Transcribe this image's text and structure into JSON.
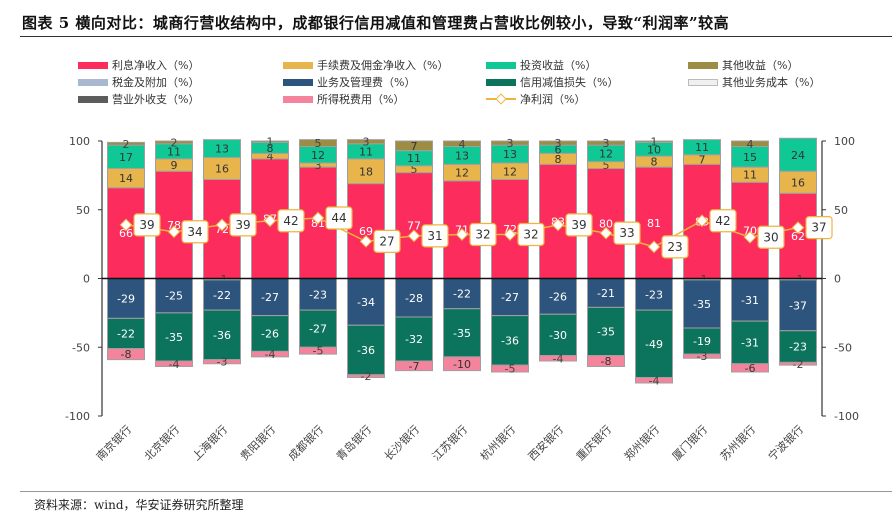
{
  "title": "图表 5 横向对比：城商行营收结构中，成都银行信用减值和管理费占营收比例较小，导致“利润率”较高",
  "source": "资料来源：wind，华安证券研究所整理",
  "colors": {
    "net_interest": "#fc2c5c",
    "fee": "#e8b54c",
    "investment": "#10c895",
    "other_income": "#9c8c44",
    "tax_surcharge": "#a8b8d0",
    "opex": "#2c547c",
    "credit_impairment": "#0c745c",
    "other_cost": "#f0f0f0",
    "non_operating": "#5c5c5c",
    "income_tax": "#f4849c",
    "net_profit": "#f0b43c"
  },
  "chart_data": {
    "type": "bar",
    "stacked": true,
    "title": "",
    "xlabel": "",
    "ylabel": "",
    "ylim": [
      -100,
      100
    ],
    "yticks": [
      -100,
      -50,
      0,
      50,
      100
    ],
    "secondary_ylim": [
      -100,
      100
    ],
    "grid": false,
    "legend_position": "top",
    "categories": [
      "南京银行",
      "北京银行",
      "上海银行",
      "贵阳银行",
      "成都银行",
      "青岛银行",
      "长沙银行",
      "江苏银行",
      "杭州银行",
      "西安银行",
      "重庆银行",
      "郑州银行",
      "厦门银行",
      "苏州银行",
      "宁波银行"
    ],
    "series": [
      {
        "key": "net_interest",
        "name": "利息净收入（%）",
        "label_color": "#ffffff",
        "values": [
          66,
          78,
          72,
          87,
          81,
          69,
          77,
          71,
          72,
          83,
          80,
          81,
          83,
          70,
          62
        ]
      },
      {
        "key": "fee",
        "name": "手续费及佣金净收入（%）",
        "label_color": "#333333",
        "values": [
          14,
          9,
          16,
          4,
          3,
          18,
          5,
          12,
          12,
          8,
          5,
          8,
          7,
          11,
          16
        ]
      },
      {
        "key": "investment",
        "name": "投资收益（%）",
        "label_color": "#333333",
        "values": [
          17,
          11,
          13,
          8,
          12,
          11,
          11,
          13,
          13,
          6,
          12,
          10,
          11,
          15,
          24
        ]
      },
      {
        "key": "other_income",
        "name": "其他收益（%）",
        "label_color": "#333333",
        "values": [
          2,
          2,
          0,
          1,
          5,
          3,
          7,
          4,
          3,
          3,
          3,
          1,
          0,
          4,
          0
        ]
      },
      {
        "key": "tax_surcharge",
        "name": "税金及附加（%）",
        "label_color": "#333333",
        "values": [
          0,
          0,
          -1,
          0,
          0,
          0,
          0,
          0,
          0,
          0,
          0,
          0,
          -1,
          0,
          -1
        ]
      },
      {
        "key": "opex",
        "name": "业务及管理费（%）",
        "label_color": "#ffffff",
        "values": [
          -29,
          -25,
          -22,
          -27,
          -23,
          -34,
          -28,
          -22,
          -27,
          -26,
          -21,
          -23,
          -35,
          -31,
          -37
        ]
      },
      {
        "key": "credit_impairment",
        "name": "信用减值损失（%）",
        "label_color": "#ffffff",
        "values": [
          -22,
          -35,
          -36,
          -26,
          -27,
          -36,
          -32,
          -35,
          -36,
          -30,
          -35,
          -49,
          -19,
          -31,
          -23
        ]
      },
      {
        "key": "other_cost",
        "name": "其他业务成本（%）",
        "label_color": "#333333",
        "values": [
          0,
          0,
          0,
          0,
          0,
          0,
          0,
          0,
          0,
          0,
          0,
          0,
          0,
          0,
          0
        ]
      },
      {
        "key": "non_operating",
        "name": "营业外收支（%）",
        "label_color": "#333333",
        "values": [
          0,
          0,
          0,
          0,
          0,
          0,
          0,
          0,
          0,
          0,
          0,
          0,
          0,
          0,
          0
        ]
      },
      {
        "key": "income_tax",
        "name": "所得税费用（%）",
        "label_color": "#333333",
        "values": [
          -8,
          -4,
          -3,
          -4,
          -5,
          -2,
          -7,
          -10,
          -5,
          -4,
          -8,
          -4,
          -3,
          -6,
          -2
        ]
      }
    ],
    "line": {
      "key": "net_profit",
      "name": "净利润（%）",
      "values": [
        39,
        34,
        39,
        42,
        44,
        27,
        31,
        32,
        32,
        39,
        33,
        23,
        42,
        30,
        37
      ]
    }
  },
  "legend": [
    {
      "key": "net_interest",
      "label": "利息净收入（%）",
      "kind": "bar"
    },
    {
      "key": "fee",
      "label": "手续费及佣金净收入（%）",
      "kind": "bar"
    },
    {
      "key": "investment",
      "label": "投资收益（%）",
      "kind": "bar"
    },
    {
      "key": "other_income",
      "label": "其他收益（%）",
      "kind": "bar"
    },
    {
      "key": "tax_surcharge",
      "label": "税金及附加（%）",
      "kind": "bar"
    },
    {
      "key": "opex",
      "label": "业务及管理费（%）",
      "kind": "bar"
    },
    {
      "key": "credit_impairment",
      "label": "信用减值损失（%）",
      "kind": "bar"
    },
    {
      "key": "other_cost",
      "label": "其他业务成本（%）",
      "kind": "bar"
    },
    {
      "key": "non_operating",
      "label": "营业外收支（%）",
      "kind": "bar"
    },
    {
      "key": "income_tax",
      "label": "所得税费用（%）",
      "kind": "bar"
    },
    {
      "key": "net_profit",
      "label": "净利润（%）",
      "kind": "line"
    }
  ]
}
